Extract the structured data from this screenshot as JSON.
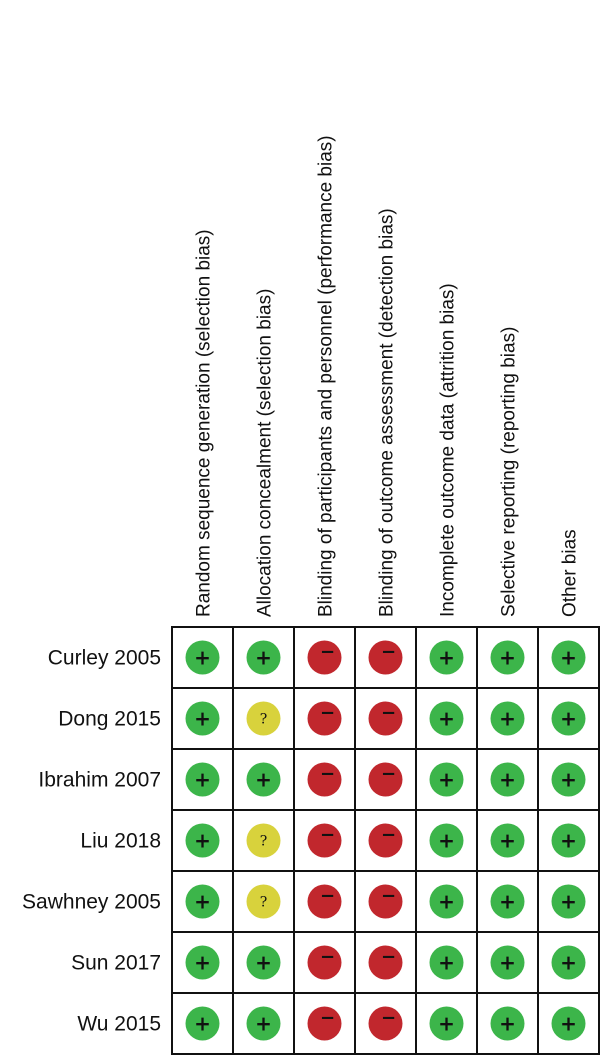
{
  "domains": [
    "Random sequence generation (selection bias)",
    "Allocation concealment (selection bias)",
    "Blinding of participants and personnel (performance bias)",
    "Blinding of outcome assessment (detection bias)",
    "Incomplete outcome data (attrition bias)",
    "Selective reporting (reporting bias)",
    "Other bias"
  ],
  "studies": [
    {
      "name": "Curley 2005",
      "ratings": [
        "low",
        "low",
        "high",
        "high",
        "low",
        "low",
        "low"
      ]
    },
    {
      "name": "Dong 2015",
      "ratings": [
        "low",
        "unclear",
        "high",
        "high",
        "low",
        "low",
        "low"
      ]
    },
    {
      "name": "Ibrahim 2007",
      "ratings": [
        "low",
        "low",
        "high",
        "high",
        "low",
        "low",
        "low"
      ]
    },
    {
      "name": "Liu 2018",
      "ratings": [
        "low",
        "unclear",
        "high",
        "high",
        "low",
        "low",
        "low"
      ]
    },
    {
      "name": "Sawhney 2005",
      "ratings": [
        "low",
        "unclear",
        "high",
        "high",
        "low",
        "low",
        "low"
      ]
    },
    {
      "name": "Sun 2017",
      "ratings": [
        "low",
        "low",
        "high",
        "high",
        "low",
        "low",
        "low"
      ]
    },
    {
      "name": "Wu 2015",
      "ratings": [
        "low",
        "low",
        "high",
        "high",
        "low",
        "low",
        "low"
      ]
    }
  ],
  "symbols": {
    "low": "+",
    "unclear": "?",
    "high": "−"
  },
  "colors": {
    "low": "#3cb54a",
    "unclear": "#d8d23c",
    "high": "#c1272d",
    "grid": "#111111"
  }
}
